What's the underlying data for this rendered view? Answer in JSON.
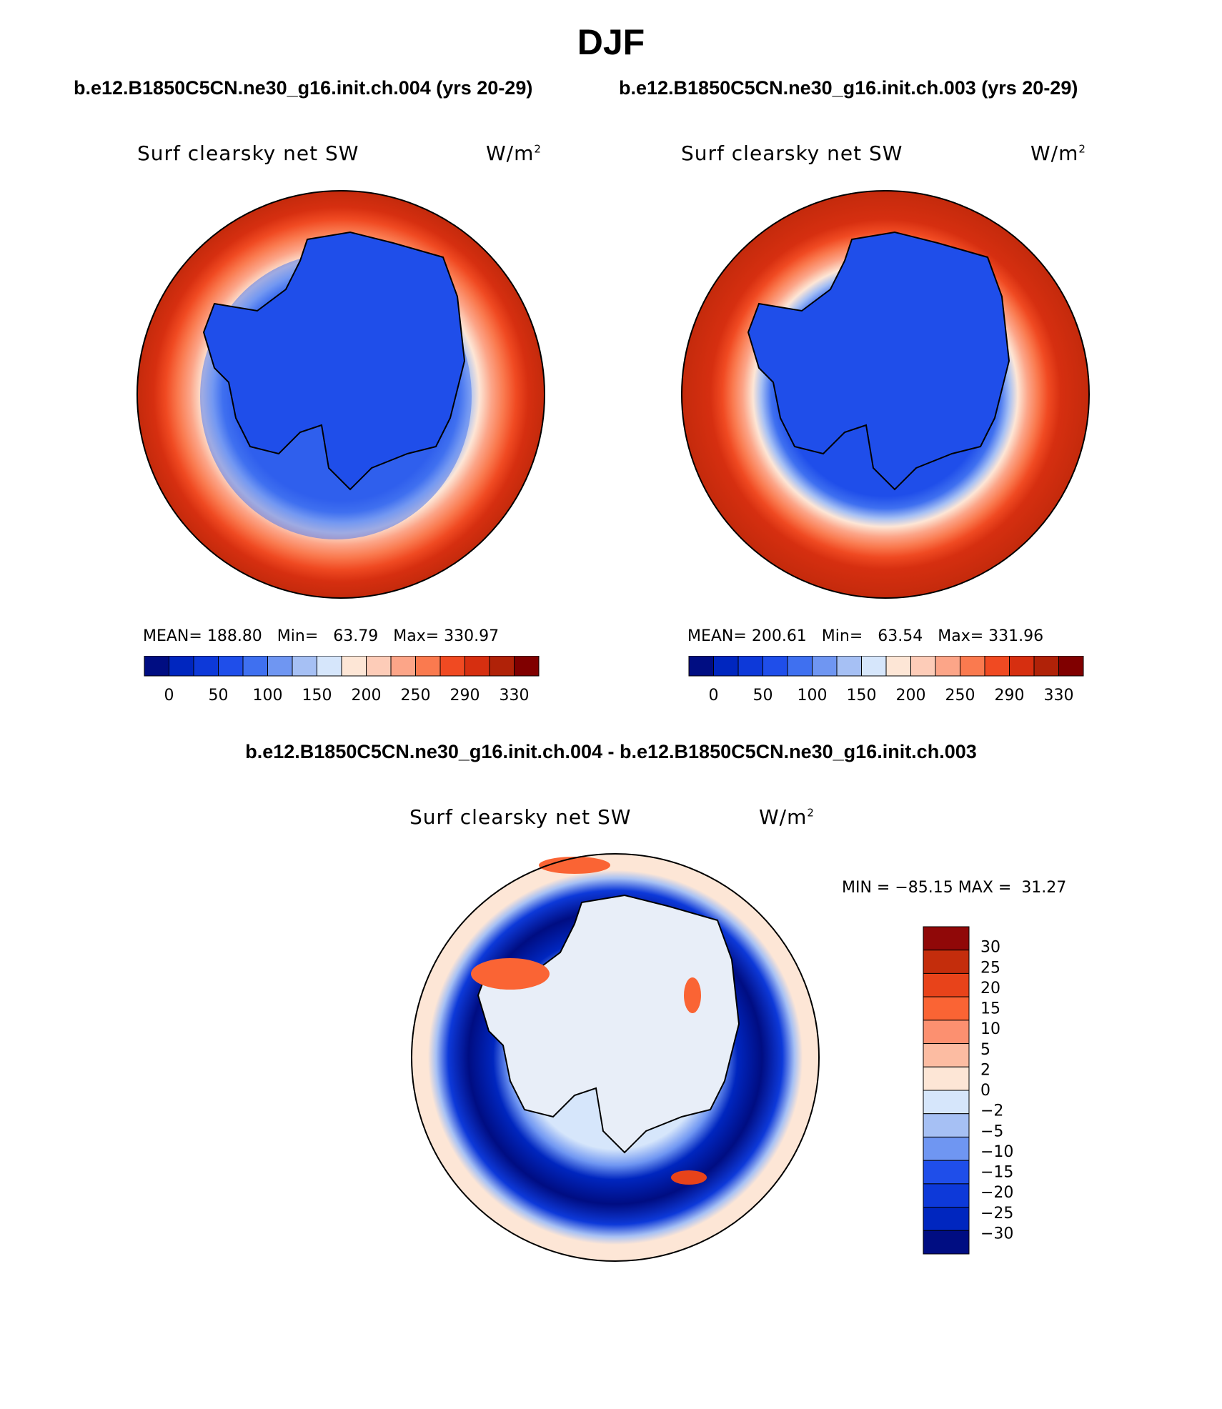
{
  "figure": {
    "season": "DJF",
    "case_a_title": "b.e12.B1850C5CN.ne30_g16.init.ch.004 (yrs 20-29)",
    "case_b_title": "b.e12.B1850C5CN.ne30_g16.init.ch.003 (yrs 20-29)",
    "diff_title": "b.e12.B1850C5CN.ne30_g16.init.ch.004 - b.e12.B1850C5CN.ne30_g16.init.ch.003"
  },
  "variable": {
    "name": "Surf clearsky net SW",
    "units_base": "W/m",
    "units_exp": "2"
  },
  "panels": {
    "case_a": {
      "mean_label": "MEAN=",
      "mean": "188.80",
      "min_label": "Min=",
      "min": "63.79",
      "max_label": "Max=",
      "max": "330.97"
    },
    "case_b": {
      "mean_label": "MEAN=",
      "mean": "200.61",
      "min_label": "Min=",
      "min": "63.54",
      "max_label": "Max=",
      "max": "331.96"
    },
    "diff": {
      "min_label": "MIN =",
      "min": "−85.15",
      "max_label": "MAX =",
      "max": "31.27"
    }
  },
  "colorbars": {
    "abs": {
      "colors": [
        "#000d82",
        "#0026bf",
        "#0d39d9",
        "#1f4eea",
        "#3f70f0",
        "#6f96f2",
        "#a6c0f4",
        "#d6e6fb",
        "#fde6d6",
        "#fdccb8",
        "#fca588",
        "#fa7a4f",
        "#f04a22",
        "#d62f10",
        "#b02208",
        "#800000"
      ],
      "tick_labels": [
        "0",
        "50",
        "100",
        "150",
        "200",
        "250",
        "290",
        "330"
      ]
    },
    "diff": {
      "colors": [
        "#000d82",
        "#0026bf",
        "#0d39d9",
        "#1f4eea",
        "#6f96f2",
        "#a6c0f4",
        "#d6e6fb",
        "#fde6d6",
        "#fcbca2",
        "#fc9070",
        "#fa6434",
        "#e8431a",
        "#c42d0c",
        "#900808"
      ],
      "tick_labels": [
        "30",
        "25",
        "20",
        "15",
        "10",
        "5",
        "2",
        "0",
        "−2",
        "−5",
        "−10",
        "−15",
        "−20",
        "−25",
        "−30"
      ]
    }
  }
}
